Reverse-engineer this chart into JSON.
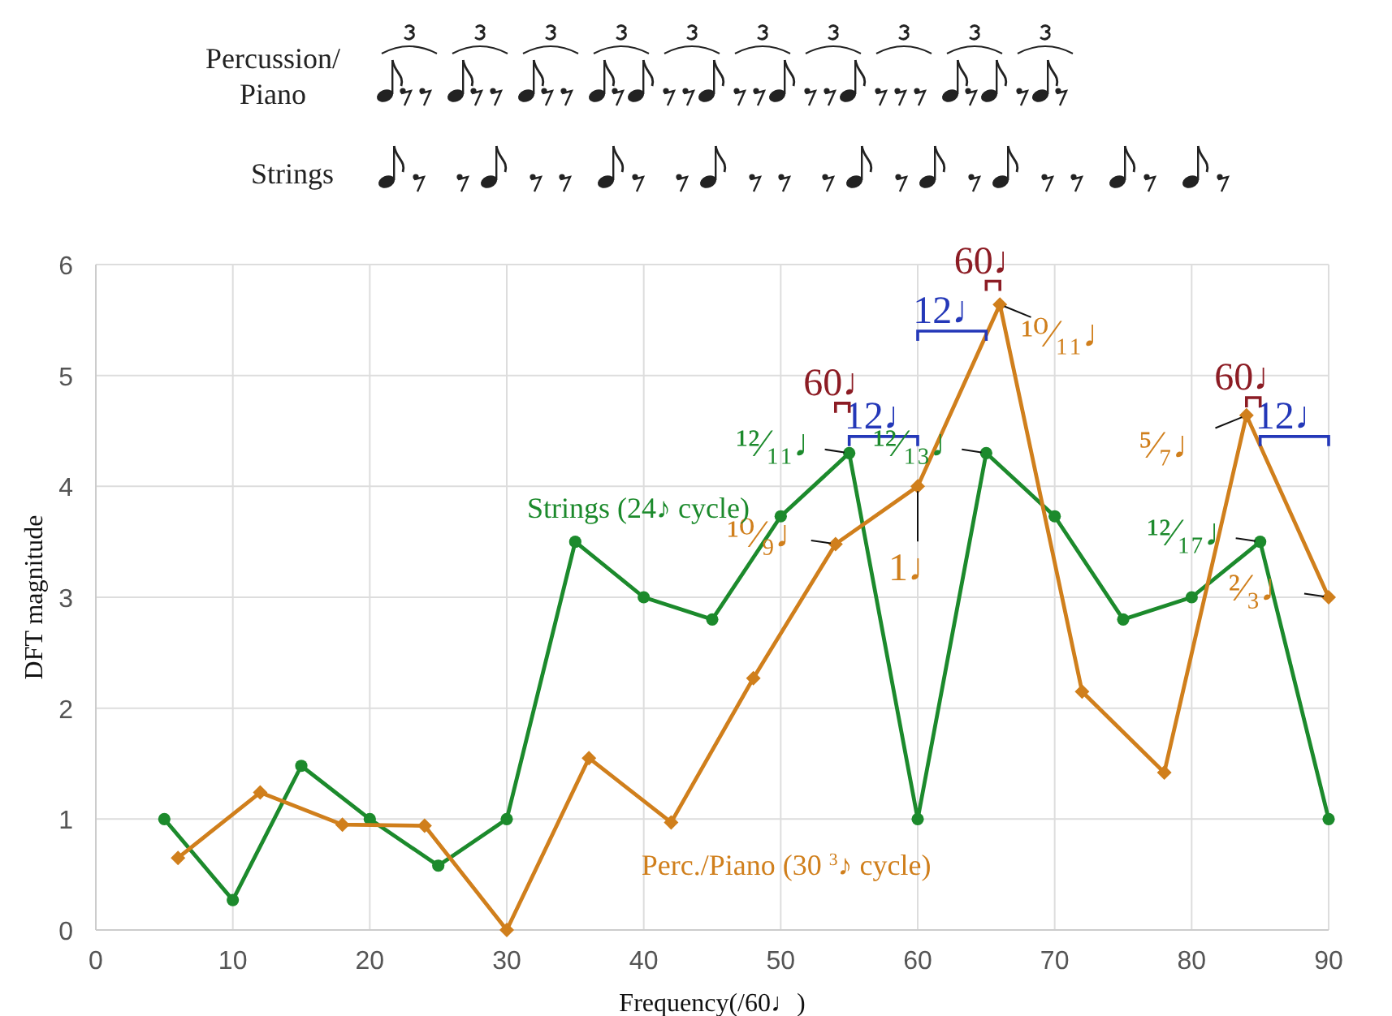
{
  "chart_data": {
    "type": "line",
    "xlabel": "Frequency(/60♩)",
    "ylabel": "DFT magnitude",
    "xlim": [
      0,
      90
    ],
    "xticks": [
      0,
      10,
      20,
      30,
      40,
      50,
      60,
      70,
      80,
      90
    ],
    "ylim": [
      0,
      6
    ],
    "yticks": [
      0,
      1,
      2,
      3,
      4,
      5,
      6
    ],
    "grid": true,
    "series": [
      {
        "name": "Strings (24♪ cycle)",
        "color": "#1c8a2c",
        "marker": "circle",
        "x": [
          5,
          10,
          15,
          20,
          25,
          30,
          35,
          40,
          45,
          50,
          55,
          60,
          65,
          70,
          75,
          80,
          85,
          90
        ],
        "values": [
          1.0,
          0.27,
          1.48,
          1.0,
          0.58,
          1.0,
          3.5,
          3.0,
          2.8,
          3.73,
          4.3,
          1.0,
          4.3,
          3.73,
          2.8,
          3.0,
          3.5,
          1.0
        ]
      },
      {
        "name": "Perc./Piano (30 $^{3}$♪ cycle)",
        "color": "#d07f1c",
        "marker": "diamond",
        "x": [
          6,
          12,
          18,
          24,
          30,
          36,
          42,
          48,
          54,
          60,
          66,
          72,
          78,
          84,
          90
        ],
        "values": [
          0.65,
          1.24,
          0.95,
          0.94,
          0.0,
          1.55,
          0.97,
          2.27,
          3.48,
          4.0,
          5.64,
          2.15,
          1.42,
          4.64,
          3.0
        ]
      }
    ],
    "annotations": [
      "Percussion/ Piano",
      "Strings",
      "12♩",
      "12♩",
      "12♩",
      "60♩",
      "60♩",
      "60♩",
      {
        "text": "¹²⁄₁₁♩",
        "x": 55,
        "y": 4.3
      },
      {
        "text": "¹⁰⁄₉♩",
        "x": 54,
        "y": 3.48
      },
      {
        "text": "1♩",
        "x": 60,
        "y": 4.0
      },
      {
        "text": "¹²⁄₁₃♩",
        "x": 65,
        "y": 4.3
      },
      {
        "text": "¹⁰⁄₁₁♩",
        "x": 66,
        "y": 5.64
      },
      {
        "text": "⁵⁄₇♩",
        "x": 84,
        "y": 4.64
      },
      {
        "text": "¹²⁄₁₇♩",
        "x": 85,
        "y": 3.5
      },
      {
        "text": "²⁄₃♩",
        "x": 90,
        "y": 3.0
      }
    ]
  }
}
